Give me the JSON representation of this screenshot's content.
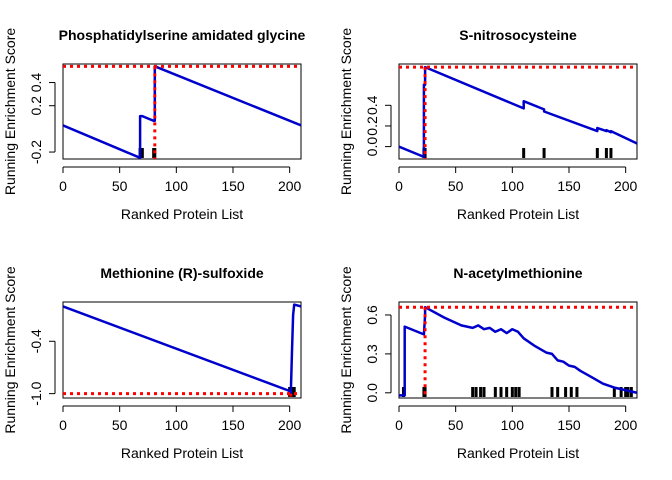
{
  "chart_data": [
    {
      "type": "line",
      "title": "Phosphatidylserine amidated glycine",
      "xlabel": "Ranked Protein List",
      "ylabel": "Running Enrichment Score",
      "xlim": [
        0,
        210
      ],
      "ylim": [
        -0.26,
        0.56
      ],
      "xticks": [
        0,
        50,
        100,
        150,
        200
      ],
      "yticks": [
        -0.2,
        0.2,
        0.4
      ],
      "yticklabels": [
        "-0.2",
        "0.2",
        "0.4"
      ],
      "line_color": "#0000cc",
      "marker_color": "#ff0000",
      "max_es": 0.54,
      "max_at": 81,
      "x": [
        0,
        68,
        68,
        70,
        75,
        80,
        81,
        81,
        210
      ],
      "y": [
        0.03,
        -0.25,
        0.11,
        0.11,
        0.09,
        0.07,
        0.07,
        0.54,
        0.03
      ],
      "hits": [
        68,
        69,
        70,
        80,
        81
      ]
    },
    {
      "type": "line",
      "title": "S-nitrosocysteine",
      "xlabel": "Ranked Protein List",
      "ylabel": "Running Enrichment Score",
      "xlim": [
        0,
        210
      ],
      "ylim": [
        -0.12,
        0.8
      ],
      "xticks": [
        0,
        50,
        100,
        150,
        200
      ],
      "yticks": [
        0.0,
        0.2,
        0.4
      ],
      "yticklabels": [
        "0.0",
        "0.2",
        "0.4"
      ],
      "line_color": "#0000cc",
      "marker_color": "#ff0000",
      "max_es": 0.77,
      "max_at": 23,
      "x": [
        0,
        22,
        22,
        23,
        23,
        110,
        110,
        128,
        128,
        175,
        175,
        183,
        183,
        187,
        187,
        210
      ],
      "y": [
        0.0,
        -0.1,
        0.6,
        0.6,
        0.77,
        0.37,
        0.44,
        0.36,
        0.34,
        0.15,
        0.18,
        0.15,
        0.16,
        0.14,
        0.15,
        0.03
      ],
      "hits": [
        22,
        23,
        110,
        128,
        175,
        183,
        187
      ]
    },
    {
      "type": "line",
      "title": "Methionine (R)-sulfoxide",
      "xlabel": "Ranked Protein List",
      "ylabel": "Running Enrichment Score",
      "xlim": [
        0,
        210
      ],
      "ylim": [
        -1.05,
        0.05
      ],
      "xticks": [
        0,
        50,
        100,
        150,
        200
      ],
      "yticks": [
        -1.0,
        -0.4
      ],
      "yticklabels": [
        "-1.0",
        "-0.4"
      ],
      "line_color": "#0000cc",
      "marker_color": "#ff0000",
      "max_es": -1.0,
      "max_at": 201,
      "x": [
        0,
        200,
        201,
        202,
        203,
        204,
        210
      ],
      "y": [
        0.0,
        -0.97,
        -1.0,
        -0.55,
        -0.1,
        0.02,
        0.0
      ],
      "hits": [
        200,
        201,
        202,
        203,
        204
      ]
    },
    {
      "type": "line",
      "title": "N-acetylmethionine",
      "xlabel": "Ranked Protein List",
      "ylabel": "Running Enrichment Score",
      "xlim": [
        0,
        210
      ],
      "ylim": [
        -0.04,
        0.7
      ],
      "xticks": [
        0,
        50,
        100,
        150,
        200
      ],
      "yticks": [
        0.0,
        0.3,
        0.6
      ],
      "yticklabels": [
        "0.0",
        "0.3",
        "0.6"
      ],
      "line_color": "#0000cc",
      "marker_color": "#ff0000",
      "max_es": 0.66,
      "max_at": 23,
      "x": [
        0,
        5,
        5,
        22,
        22,
        23,
        23,
        40,
        55,
        65,
        70,
        75,
        80,
        85,
        90,
        95,
        100,
        105,
        110,
        120,
        130,
        135,
        140,
        145,
        150,
        155,
        160,
        170,
        180,
        190,
        195,
        200,
        205,
        210
      ],
      "y": [
        -0.02,
        -0.02,
        0.51,
        0.45,
        0.45,
        0.6,
        0.66,
        0.58,
        0.52,
        0.5,
        0.52,
        0.49,
        0.5,
        0.47,
        0.49,
        0.46,
        0.49,
        0.47,
        0.42,
        0.36,
        0.31,
        0.3,
        0.25,
        0.24,
        0.21,
        0.2,
        0.17,
        0.12,
        0.07,
        0.04,
        0.03,
        0.02,
        0.01,
        0.0
      ],
      "hits": [
        4,
        22,
        23,
        65,
        68,
        72,
        75,
        85,
        90,
        95,
        100,
        103,
        106,
        135,
        140,
        147,
        152,
        157,
        190,
        196,
        200,
        202,
        205
      ]
    }
  ]
}
